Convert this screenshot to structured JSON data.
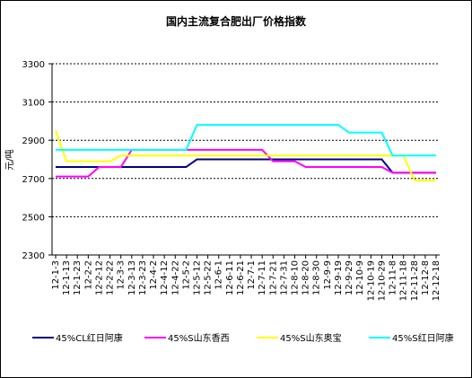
{
  "chart_data": {
    "type": "line",
    "title": "国内主流复合肥出厂价格指数",
    "y_label": "元/吨",
    "categories": [
      "12-1-3",
      "12-1-13",
      "12-1-23",
      "12-2-2",
      "12-2-12",
      "12-2-22",
      "12-3-3",
      "12-3-13",
      "12-3-23",
      "12-4-2",
      "12-4-12",
      "12-4-22",
      "12-5-2",
      "12-5-12",
      "12-5-22",
      "12-6-1",
      "12-6-11",
      "12-6-21",
      "12-7-1",
      "12-7-11",
      "12-7-21",
      "12-7-31",
      "12-8-10",
      "12-8-20",
      "12-8-30",
      "12-9-9",
      "12-9-19",
      "12-9-29",
      "12-10-9",
      "12-10-19",
      "12-10-29",
      "12-11-8",
      "12-11-18",
      "12-11-28",
      "12-12-8",
      "12-12-18"
    ],
    "series": [
      {
        "name": "45%CL红日阿康",
        "color": "#000080",
        "values": [
          2760,
          2760,
          2760,
          2760,
          2760,
          2760,
          2760,
          2760,
          2760,
          2760,
          2760,
          2760,
          2760,
          2800,
          2800,
          2800,
          2800,
          2800,
          2800,
          2800,
          2800,
          2800,
          2800,
          2800,
          2800,
          2800,
          2800,
          2800,
          2800,
          2800,
          2800,
          2730,
          2730,
          2730,
          2730,
          2730
        ]
      },
      {
        "name": "45%S山东香西",
        "color": "#ff00ff",
        "values": [
          2710,
          2710,
          2710,
          2710,
          2760,
          2760,
          2760,
          2850,
          2850,
          2850,
          2850,
          2850,
          2850,
          2850,
          2850,
          2850,
          2850,
          2850,
          2850,
          2850,
          2790,
          2790,
          2790,
          2760,
          2760,
          2760,
          2760,
          2760,
          2760,
          2760,
          2760,
          2730,
          2730,
          2730,
          2730,
          2730
        ]
      },
      {
        "name": "45%S山东奥宝",
        "color": "#ffff00",
        "values": [
          2950,
          2790,
          2790,
          2790,
          2790,
          2790,
          2820,
          2820,
          2820,
          2820,
          2820,
          2820,
          2820,
          2820,
          2820,
          2820,
          2820,
          2820,
          2820,
          2820,
          2820,
          2820,
          2820,
          2820,
          2820,
          2820,
          2820,
          2820,
          2820,
          2820,
          2820,
          2820,
          2820,
          2690,
          2690,
          2690
        ]
      },
      {
        "name": "45%S红日阿康",
        "color": "#00ffff",
        "values": [
          2850,
          2850,
          2850,
          2850,
          2850,
          2850,
          2850,
          2850,
          2850,
          2850,
          2850,
          2850,
          2850,
          2980,
          2980,
          2980,
          2980,
          2980,
          2980,
          2980,
          2980,
          2980,
          2980,
          2980,
          2980,
          2980,
          2980,
          2940,
          2940,
          2940,
          2940,
          2820,
          2820,
          2820,
          2820,
          2820
        ]
      }
    ],
    "ylim": [
      2300,
      3300
    ],
    "yticks": [
      2300,
      2500,
      2700,
      2900,
      3100,
      3300
    ],
    "grid": true
  }
}
